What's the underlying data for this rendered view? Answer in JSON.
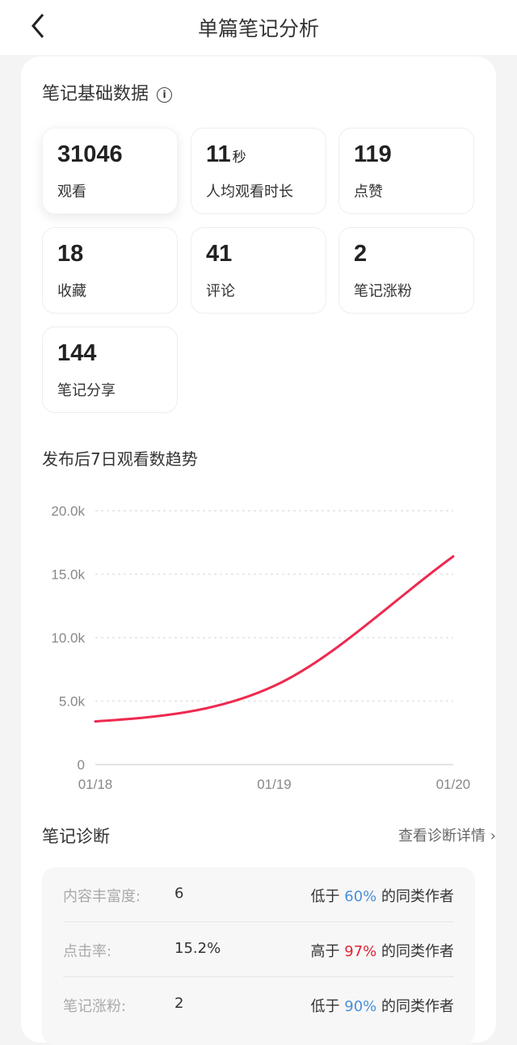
{
  "header": {
    "title": "单篇笔记分析",
    "back_icon": "chevron-left-icon"
  },
  "basic": {
    "title": "笔记基础数据",
    "info_icon": "info-icon",
    "stats": [
      {
        "value": "31046",
        "unit": "",
        "label": "观看"
      },
      {
        "value": "11",
        "unit": "秒",
        "label": "人均观看时长"
      },
      {
        "value": "119",
        "unit": "",
        "label": "点赞"
      },
      {
        "value": "18",
        "unit": "",
        "label": "收藏"
      },
      {
        "value": "41",
        "unit": "",
        "label": "评论"
      },
      {
        "value": "2",
        "unit": "",
        "label": "笔记涨粉"
      },
      {
        "value": "144",
        "unit": "",
        "label": "笔记分享"
      }
    ]
  },
  "trend": {
    "title": "发布后7日观看数趋势"
  },
  "chart_data": {
    "type": "line",
    "x": [
      "01/18",
      "01/19",
      "01/20"
    ],
    "series": [
      {
        "values": [
          3400,
          6200,
          16400
        ],
        "color": "#ee2a4f"
      }
    ],
    "ylim": [
      0,
      20000
    ],
    "yticks": [
      "0",
      "5.0k",
      "10.0k",
      "15.0k",
      "20.0k"
    ],
    "ytick_values": [
      0,
      5000,
      10000,
      15000,
      20000
    ],
    "grid": true
  },
  "diagnosis": {
    "title": "笔记诊断",
    "link": "查看诊断详情",
    "link_icon": "chevron-right-icon",
    "rows": [
      {
        "key": "内容丰富度:",
        "value": "6",
        "pre": "低于",
        "pct": "60%",
        "post": "的同类作者",
        "color": "#4a90d9"
      },
      {
        "key": "点击率:",
        "value": "15.2%",
        "pre": "高于",
        "pct": "97%",
        "post": "的同类作者",
        "color": "#e02433"
      },
      {
        "key": "笔记涨粉:",
        "value": "2",
        "pre": "低于",
        "pct": "90%",
        "post": "的同类作者",
        "color": "#4a90d9"
      }
    ]
  }
}
